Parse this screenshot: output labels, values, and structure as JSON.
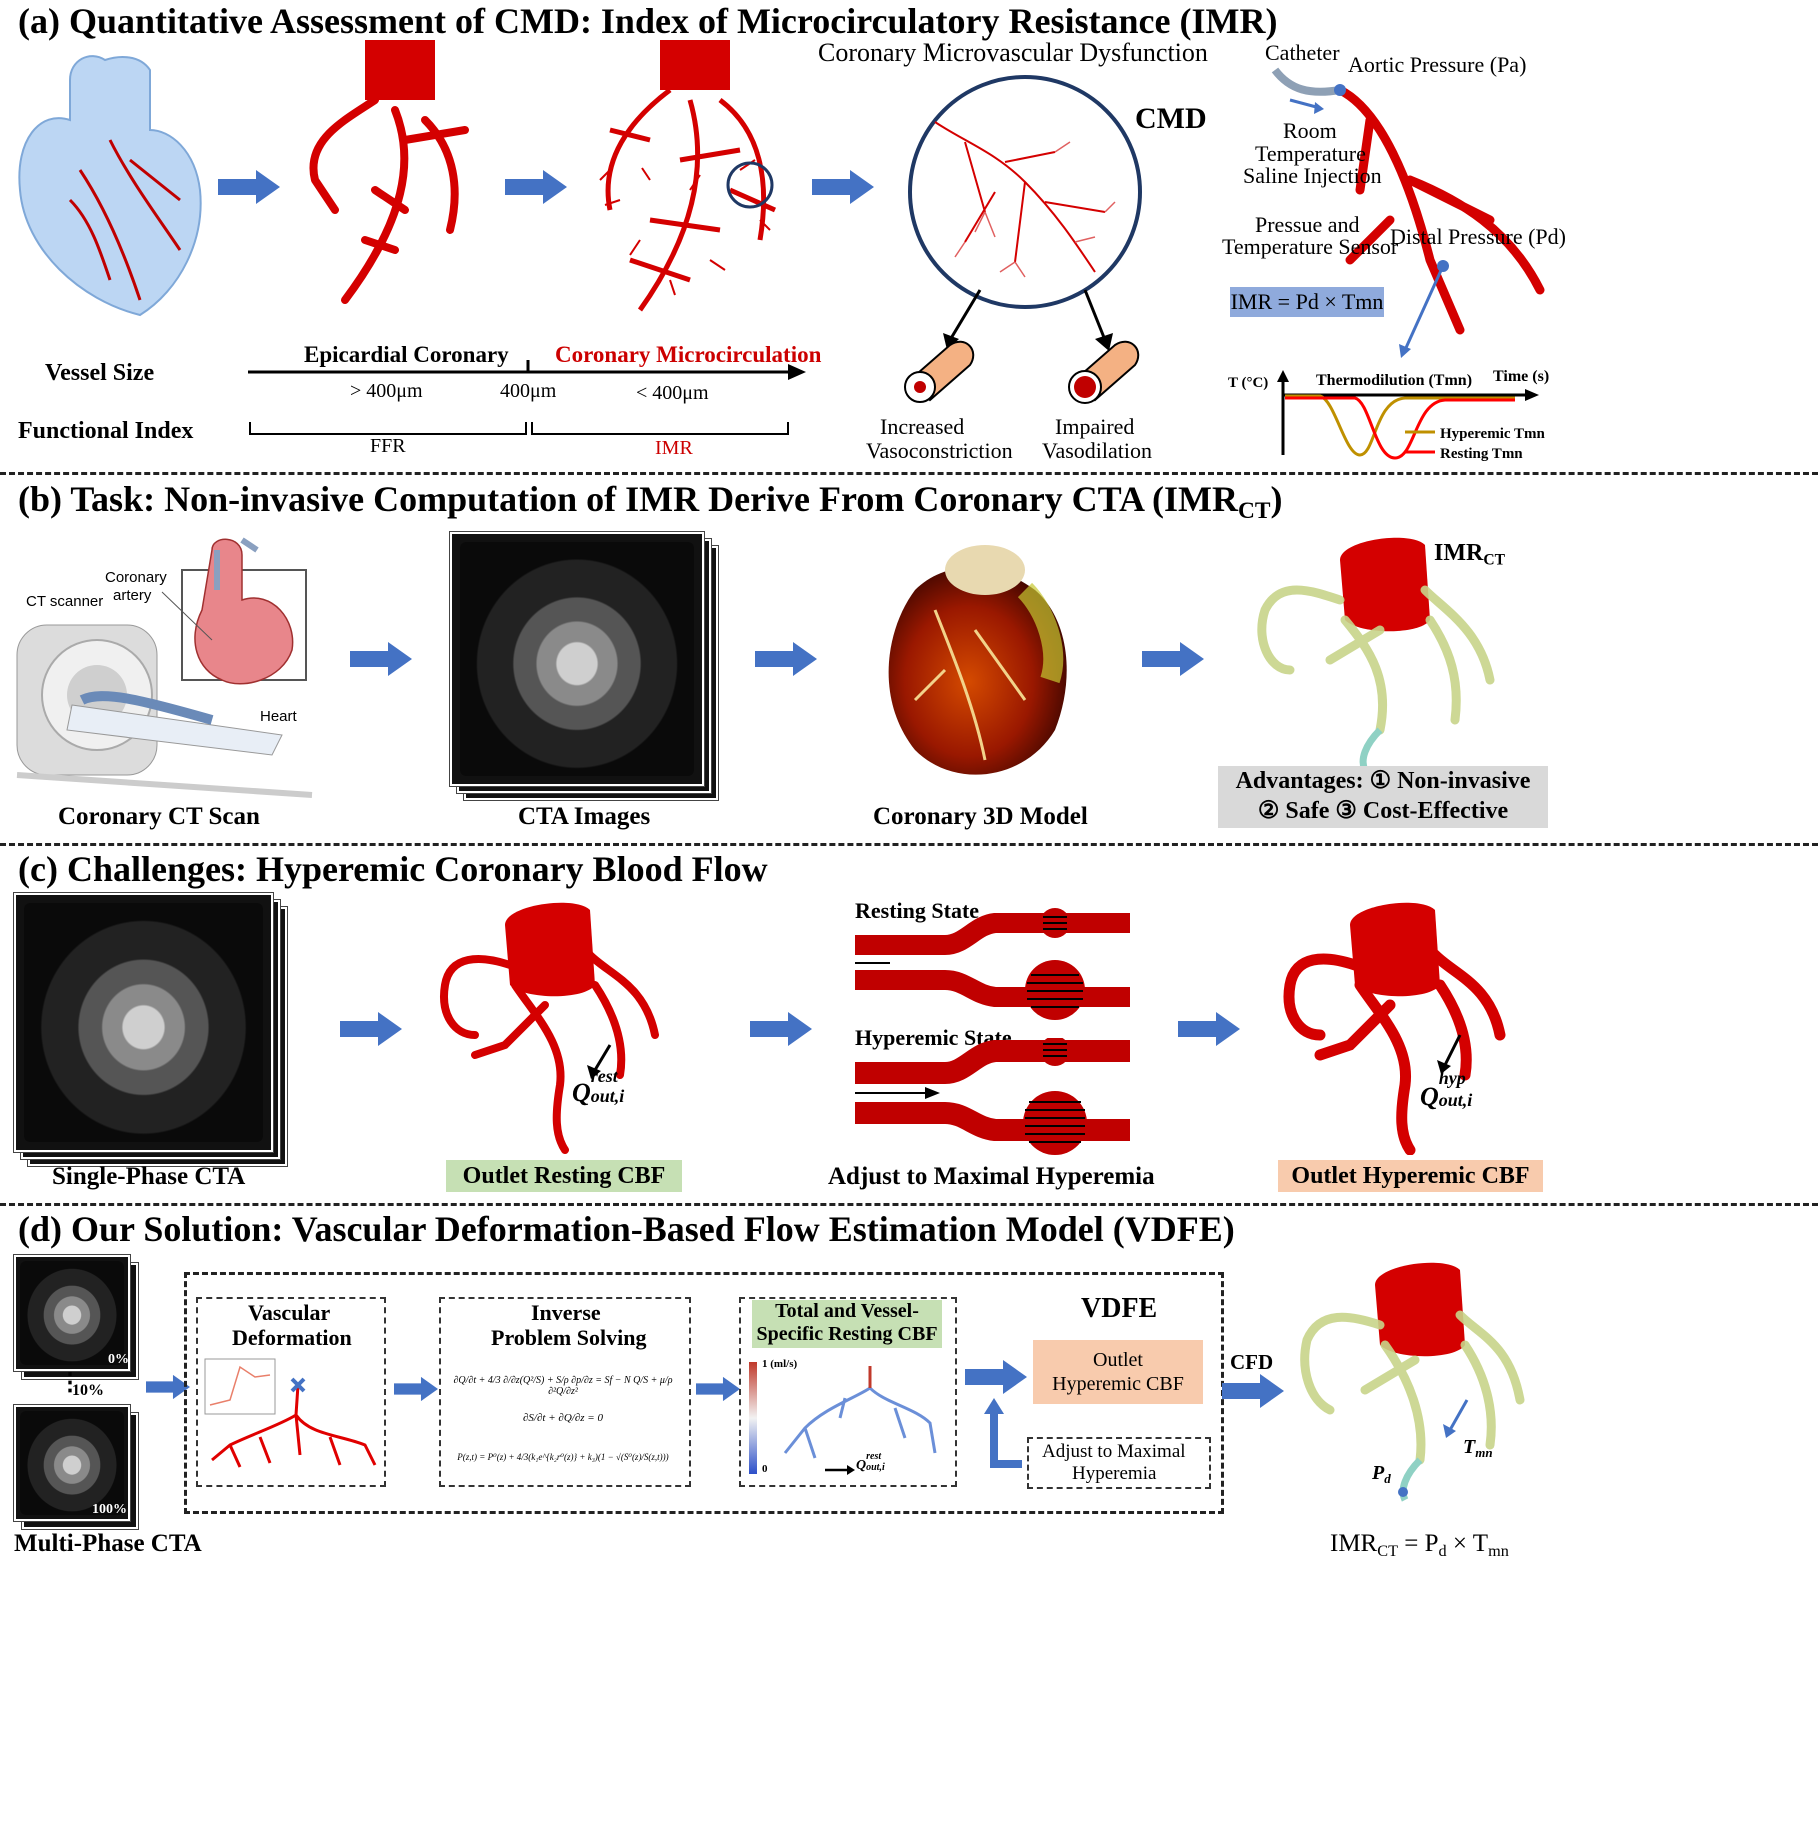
{
  "section_a": {
    "title": "(a) Quantitative Assessment of CMD: Index of Microcirculatory Resistance (IMR)",
    "cmd_panel_title": "Coronary Microvascular Dysfunction",
    "cmd_label": "CMD",
    "vessel_size": "Vessel Size",
    "functional_index": "Functional Index",
    "epicardial": "Epicardial Coronary",
    "microcirculation": "Coronary Microcirculation",
    "gt400": "> 400μm",
    "eq400": "400μm",
    "lt400": "< 400μm",
    "ffr": "FFR",
    "imr": "IMR",
    "increased": "Increased",
    "vasoconstriction": "Vasoconstriction",
    "impaired": "Impaired",
    "vasodilation": "Vasodilation",
    "catheter": "Catheter",
    "aortic_pressure": "Aortic Pressure (Pa)",
    "room": "Room",
    "temperature": "Temperature",
    "saline": "Saline Injection",
    "pressure_and": "Pressue and",
    "temp_sensor": "Temperature Sensor",
    "distal_pressure": "Distal Pressure (Pd)",
    "imr_formula": "IMR = Pd × Tmn",
    "thermo_ylabel": "T (°C)",
    "thermo_title": "Thermodilution (Tmn)",
    "thermo_xlabel": "Time (s)",
    "hyperemic_tmn": "Hyperemic Tmn",
    "resting_tmn": "Resting Tmn"
  },
  "section_b": {
    "title_main": "(b) Task: Non-invasive Computation of IMR Derive From Coronary CTA (IMR",
    "title_sub": "CT",
    "title_end": ")",
    "coronary_artery": "Coronary",
    "artery": "artery",
    "ct_scanner": "CT scanner",
    "heart": "Heart",
    "scan_caption": "Coronary CT Scan",
    "cta_caption": "CTA Images",
    "model_caption": "Coronary 3D Model",
    "imrct": "IMR",
    "imrct_sub": "CT",
    "advantages_line1": "Advantages: ① Non-invasive",
    "advantages_line2": "② Safe ③ Cost-Effective"
  },
  "section_c": {
    "title": "(c) Challenges: Hyperemic Coronary Blood Flow",
    "single_phase": "Single-Phase CTA",
    "outlet_resting": "Outlet Resting CBF",
    "resting_state": "Resting State",
    "hyperemic_state": "Hyperemic State",
    "adjust": "Adjust to Maximal Hyperemia",
    "outlet_hyperemic": "Outlet Hyperemic CBF",
    "q_rest_base": "Q",
    "q_rest_sup": "rest",
    "q_sub": "out,i",
    "q_hyp_sup": "hyp"
  },
  "section_d": {
    "title": "(d) Our Solution: Vascular Deformation-Based Flow Estimation Model (VDFE)",
    "pct0": "0%",
    "pct10": "10%",
    "pct100": "100%",
    "multi_phase": "Multi-Phase CTA",
    "vascular": "Vascular",
    "deformation": "Deformation",
    "inverse": "Inverse",
    "problem_solving": "Problem Solving",
    "eq1": "∂Q/∂t + 4/3 ∂/∂z(Q²/S) + S/ρ ∂p/∂z = Sf − N Q/S + μ/ρ ∂²Q/∂z²",
    "eq2": "∂S/∂t + ∂Q/∂z = 0",
    "eq3": "P(z,t) = P⁰(z) + 4/3(k₁e^{k₂r⁰(z)} + k₃)(1 − √(S⁰(z)/S(z,t)))",
    "total_vessel": "Total and Vessel-",
    "specific_resting": "Specific Resting CBF",
    "colorbar_max": "1 (ml/s)",
    "colorbar_min": "0",
    "vdfe": "VDFE",
    "outlet": "Outlet",
    "hyperemic_cbf": "Hyperemic CBF",
    "adjust_maximal": "Adjust to Maximal",
    "hyperemia": "Hyperemia",
    "cfd": "CFD",
    "pd": "P",
    "pd_sub": "d",
    "tmn": "T",
    "tmn_sub": "mn",
    "formula_left": "IMR",
    "formula_left_sub": "CT",
    "formula_mid": " = P",
    "formula_mid_sub": "d",
    "formula_right": " × T",
    "formula_right_sub": "mn"
  },
  "colors": {
    "arrow_blue": "#4472C4",
    "vessel_red": "#D40000",
    "green_fill": "#C6E0B4",
    "orange_fill": "#F8CBAD",
    "gray_fill": "#D9D9D9",
    "formula_blue": "#8FAADC"
  }
}
